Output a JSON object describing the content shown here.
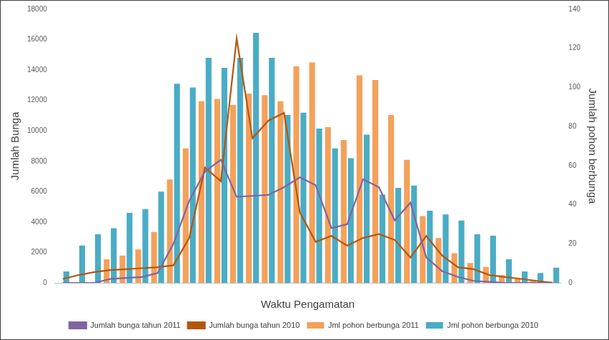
{
  "chart_data": {
    "type": "bar",
    "x_label": "Waktu Pengamatan",
    "y_label": "Jumlah Bunga",
    "y2_label": "Jumlah pohon berbunga",
    "categories": [
      null,
      null,
      null,
      null,
      null,
      null,
      null,
      null,
      null,
      null,
      null,
      null,
      null,
      null,
      null,
      null,
      null,
      null,
      null,
      null,
      null,
      null,
      null,
      null,
      null,
      null,
      null,
      null,
      null,
      null,
      null,
      null
    ],
    "ylim": [
      0,
      18000
    ],
    "yticks": [
      0,
      2000,
      4000,
      6000,
      8000,
      10000,
      12000,
      14000,
      16000,
      18000
    ],
    "y2lim": [
      0,
      140
    ],
    "y2ticks": [
      0,
      20,
      40,
      60,
      80,
      100,
      120,
      140
    ],
    "grid": false,
    "legend": "bottom",
    "series": [
      {
        "name": "Jml pohon berbunga 2011",
        "type": "bar",
        "color": "#f4a15a",
        "values": [
          0,
          0,
          0,
          1550,
          1800,
          2200,
          3350,
          6800,
          8850,
          11950,
          12100,
          11700,
          12450,
          12350,
          11950,
          14250,
          14500,
          10250,
          9400,
          13650,
          13350,
          11050,
          8100,
          4400,
          2950,
          1950,
          1300,
          1050,
          500,
          300,
          200,
          100
        ]
      },
      {
        "name": "Jml pohon berbunga 2010",
        "type": "bar",
        "color": "#4aacc5",
        "values": [
          750,
          2450,
          3200,
          3600,
          4600,
          4850,
          6000,
          13100,
          12850,
          14800,
          14150,
          14800,
          16450,
          14800,
          11050,
          11200,
          10150,
          8850,
          8200,
          9750,
          5800,
          6250,
          6400,
          4750,
          4500,
          4100,
          3200,
          3100,
          1550,
          750,
          650,
          1000
        ]
      },
      {
        "name": "Jumlah bunga tahun 2011",
        "type": "line",
        "axis": "y2",
        "color": "#8064a2",
        "values": [
          0,
          0,
          0,
          2,
          2.5,
          3,
          5,
          20,
          42,
          57,
          63,
          44,
          44.5,
          45,
          49,
          54,
          50,
          28,
          30,
          53,
          49,
          32,
          41,
          13,
          6,
          3,
          1,
          0.5,
          0,
          0,
          0,
          0
        ]
      },
      {
        "name": "Jumlah bunga tahun 2010",
        "type": "line",
        "axis": "y2",
        "color": "#b5560f",
        "values": [
          2,
          4,
          5.5,
          6.5,
          7,
          7.5,
          8,
          9,
          23,
          59,
          52,
          125,
          74,
          83,
          87,
          36,
          21,
          24,
          19,
          23,
          25,
          22,
          13,
          24,
          14,
          8,
          7,
          4,
          3,
          2,
          1,
          0
        ]
      }
    ]
  }
}
